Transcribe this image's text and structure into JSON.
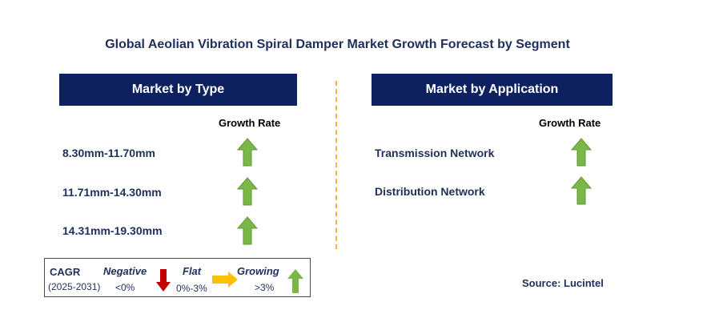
{
  "title": "Global Aeolian Vibration Spiral Damper Market Growth Forecast by Segment",
  "left_panel": {
    "header": "Market by Type",
    "growth_label": "Growth Rate",
    "rows": [
      {
        "label": "8.30mm-11.70mm",
        "trend": "growing"
      },
      {
        "label": "11.71mm-14.30mm",
        "trend": "growing"
      },
      {
        "label": "14.31mm-19.30mm",
        "trend": "growing"
      }
    ]
  },
  "right_panel": {
    "header": "Market by Application",
    "growth_label": "Growth Rate",
    "rows": [
      {
        "label": "Transmission Network",
        "trend": "growing"
      },
      {
        "label": "Distribution Network",
        "trend": "growing"
      }
    ]
  },
  "legend": {
    "cagr": "CAGR",
    "period": "(2025-2031)",
    "negative": {
      "label": "Negative",
      "range": "<0%"
    },
    "flat": {
      "label": "Flat",
      "range": "0%-3%"
    },
    "growing": {
      "label": "Growing",
      "range": ">3%"
    }
  },
  "source": "Source: Lucintel",
  "colors": {
    "header_bg": "#0d2161",
    "text": "#1f2f5c",
    "growing": "#7ab648",
    "negative": "#c00000",
    "flat": "#ffc000",
    "divider": "#f3b23a"
  }
}
